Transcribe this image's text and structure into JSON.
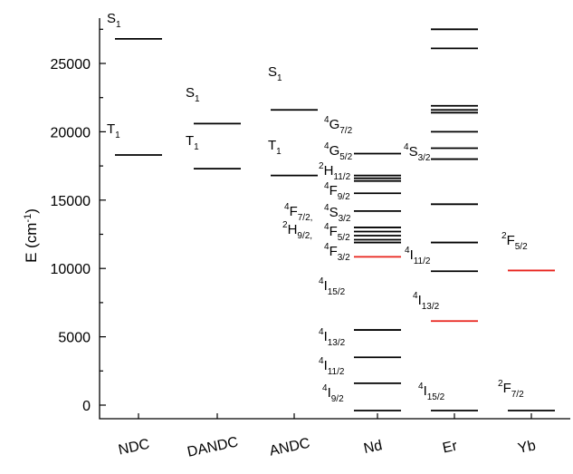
{
  "chart_data": {
    "type": "energy-level diagram",
    "ylabel": "E (cm⁻¹)",
    "ylabel_main": "E (cm",
    "ylabel_sup": "-1",
    "ylabel_end": ")",
    "ylim": [
      -500,
      28000
    ],
    "yticks": [
      0,
      5000,
      10000,
      15000,
      20000,
      25000
    ],
    "ytick_labels": [
      "0",
      "5000",
      "10000",
      "15000",
      "20000",
      "25000"
    ],
    "categories": [
      "NDC",
      "DANDC",
      "ANDC",
      "Nd",
      "Er",
      "Yb"
    ],
    "levels": [
      {
        "category": "NDC",
        "energies": [
          26800,
          18300
        ],
        "color": "#000000"
      },
      {
        "category": "DANDC",
        "energies": [
          20600,
          17300
        ],
        "color": "#000000"
      },
      {
        "category": "ANDC",
        "energies": [
          21600,
          16800
        ],
        "color": "#000000"
      },
      {
        "category": "Nd",
        "energies": [
          18400,
          16800,
          16600,
          16400,
          15500,
          14200,
          13000,
          12700,
          12400,
          12100,
          11900,
          5500,
          3500,
          1600,
          -400
        ],
        "color": "#000000"
      },
      {
        "category": "Nd",
        "energies": [
          10850
        ],
        "color": "#e8221b"
      },
      {
        "category": "Er",
        "energies": [
          27500,
          26100,
          21900,
          21600,
          21400,
          20000,
          18800,
          18000,
          14700,
          11900,
          9800,
          -400
        ],
        "color": "#000000"
      },
      {
        "category": "Er",
        "energies": [
          6150
        ],
        "color": "#e8221b"
      },
      {
        "category": "Yb",
        "energies": [
          -400
        ],
        "color": "#000000"
      },
      {
        "category": "Yb",
        "energies": [
          9850
        ],
        "color": "#e8221b"
      }
    ],
    "annotations": [
      {
        "id": "ndc-s1",
        "sup": "",
        "main": "S",
        "sub": "1"
      },
      {
        "id": "ndc-t1",
        "sup": "",
        "main": "T",
        "sub": "1"
      },
      {
        "id": "dandc-s1",
        "sup": "",
        "main": "S",
        "sub": "1"
      },
      {
        "id": "dandc-t1",
        "sup": "",
        "main": "T",
        "sub": "1"
      },
      {
        "id": "andc-s1",
        "sup": "",
        "main": "S",
        "sub": "1"
      },
      {
        "id": "andc-t1",
        "sup": "",
        "main": "T",
        "sub": "1"
      },
      {
        "id": "nd-4g72",
        "sup": "4",
        "main": "G",
        "sub": "7/2"
      },
      {
        "id": "nd-4g52",
        "sup": "4",
        "main": "G",
        "sub": "5/2"
      },
      {
        "id": "nd-2h112",
        "sup": "2",
        "main": "H",
        "sub": "11/2"
      },
      {
        "id": "nd-4f92",
        "sup": "4",
        "main": "F",
        "sub": "9/2"
      },
      {
        "id": "nd-4s32",
        "sup": "4",
        "main": "S",
        "sub": "3/2"
      },
      {
        "id": "nd-4f72",
        "sup": "4",
        "main": "F",
        "sub": "7/2,"
      },
      {
        "id": "nd-4f52",
        "sup": "4",
        "main": "F",
        "sub": "5/2"
      },
      {
        "id": "nd-2h92",
        "sup": "2",
        "main": "H",
        "sub": "9/2,"
      },
      {
        "id": "nd-4f32",
        "sup": "4",
        "main": "F",
        "sub": "3/2"
      },
      {
        "id": "nd-4i152",
        "sup": "4",
        "main": "I",
        "sub": "15/2"
      },
      {
        "id": "nd-4i132",
        "sup": "4",
        "main": "I",
        "sub": "13/2"
      },
      {
        "id": "nd-4i112",
        "sup": "4",
        "main": "I",
        "sub": "11/2"
      },
      {
        "id": "nd-4i92",
        "sup": "4",
        "main": "I",
        "sub": "9/2"
      },
      {
        "id": "er-4s32",
        "sup": "4",
        "main": "S",
        "sub": "3/2"
      },
      {
        "id": "er-4i112",
        "sup": "4",
        "main": "I",
        "sub": "11/2"
      },
      {
        "id": "er-4i132",
        "sup": "4",
        "main": "I",
        "sub": "13/2"
      },
      {
        "id": "er-4i152",
        "sup": "4",
        "main": "I",
        "sub": "15/2"
      },
      {
        "id": "yb-2f52",
        "sup": "2",
        "main": "F",
        "sub": "5/2"
      },
      {
        "id": "yb-2f72",
        "sup": "2",
        "main": "F",
        "sub": "7/2"
      }
    ],
    "grid": false,
    "colors": {
      "axis": "#000000",
      "level": "#000000",
      "highlight": "#e8221b"
    }
  }
}
